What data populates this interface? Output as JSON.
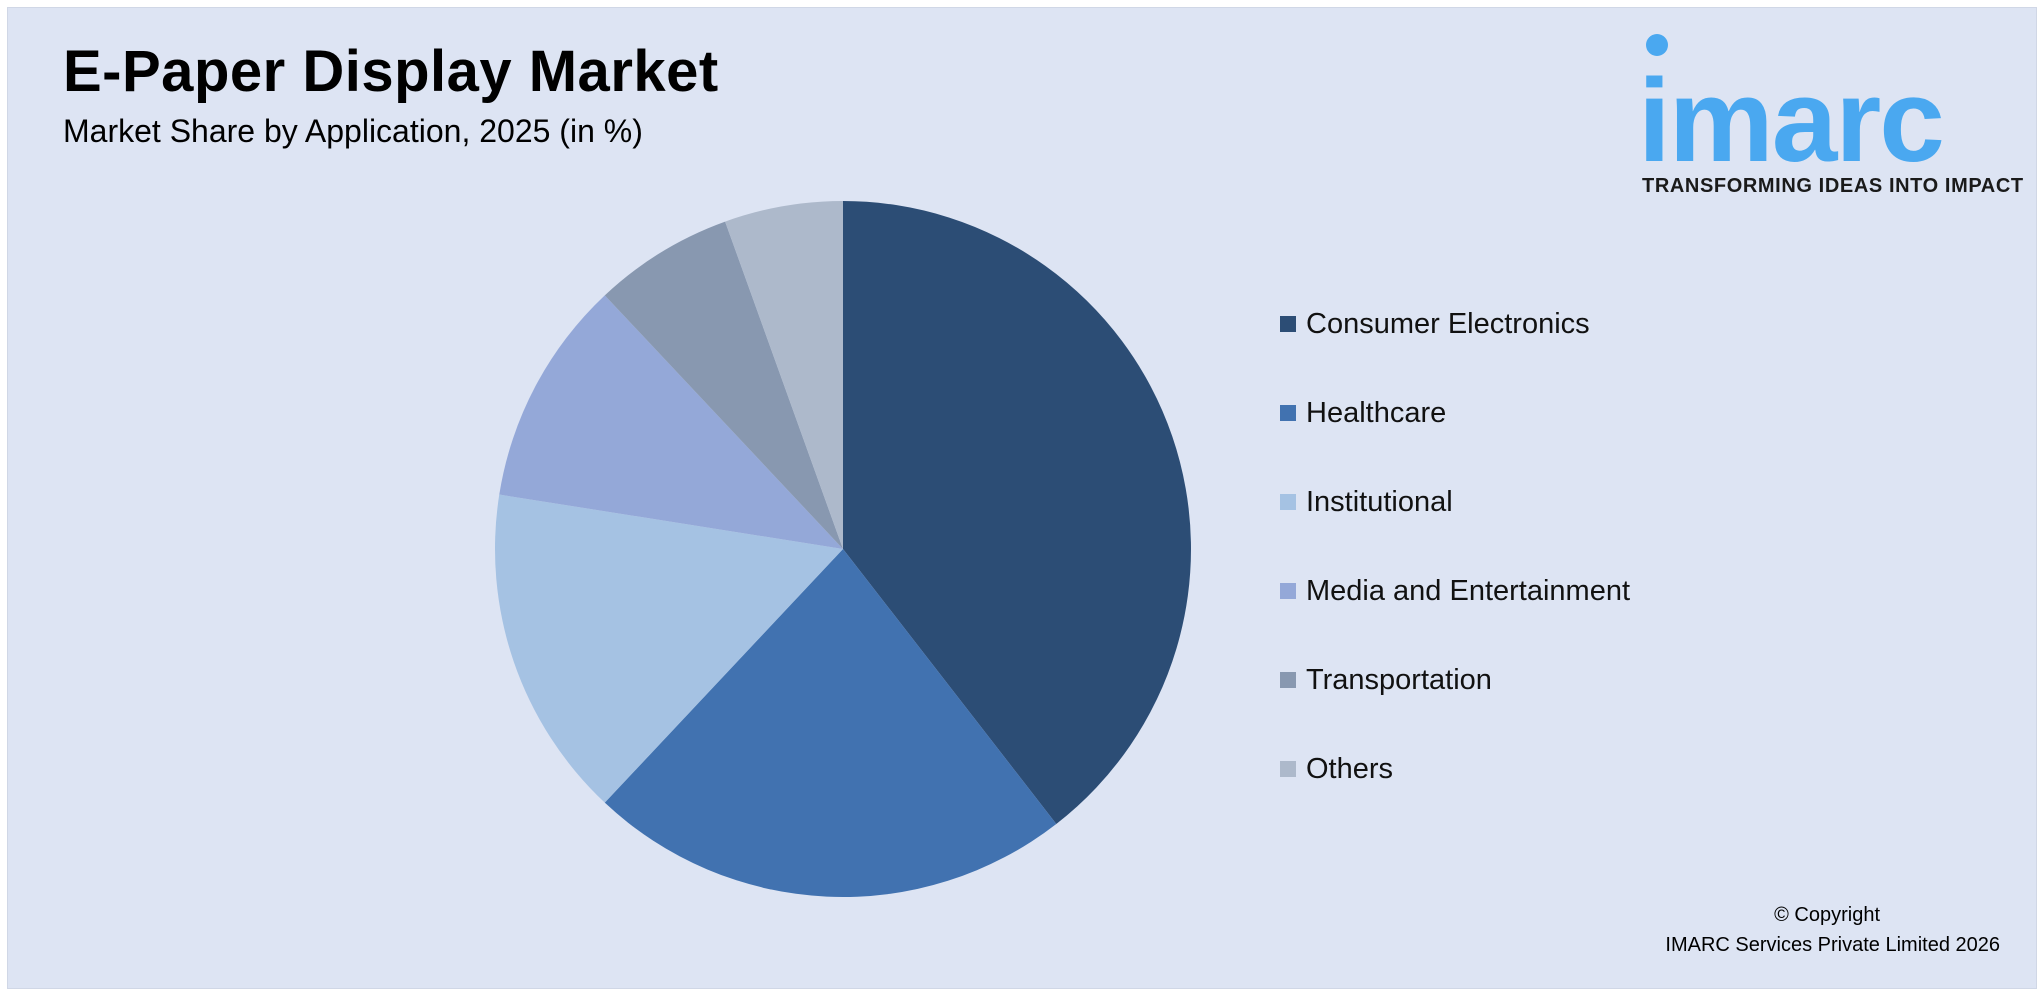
{
  "header": {
    "title": "E-Paper Display Market",
    "subtitle": "Market Share by Application, 2025 (in %)"
  },
  "logo": {
    "word": "imarc",
    "tagline": "TRANSFORMING IDEAS INTO IMPACT",
    "color": "#4aa8f0"
  },
  "chart_data": {
    "type": "pie",
    "legend_position": "right",
    "categories": [
      "Consumer Electronics",
      "Healthcare",
      "Institutional",
      "Media and Entertainment",
      "Transportation",
      "Others"
    ],
    "values": [
      39.5,
      22.5,
      15.5,
      10.5,
      6.5,
      5.5
    ],
    "colors": [
      "#2c4d75",
      "#4172b0",
      "#a5c2e3",
      "#94a8d8",
      "#8898b0",
      "#adb9cb"
    ]
  },
  "footer": {
    "copyright_line1": "© Copyright",
    "copyright_line2": "IMARC Services Private Limited 2026"
  }
}
